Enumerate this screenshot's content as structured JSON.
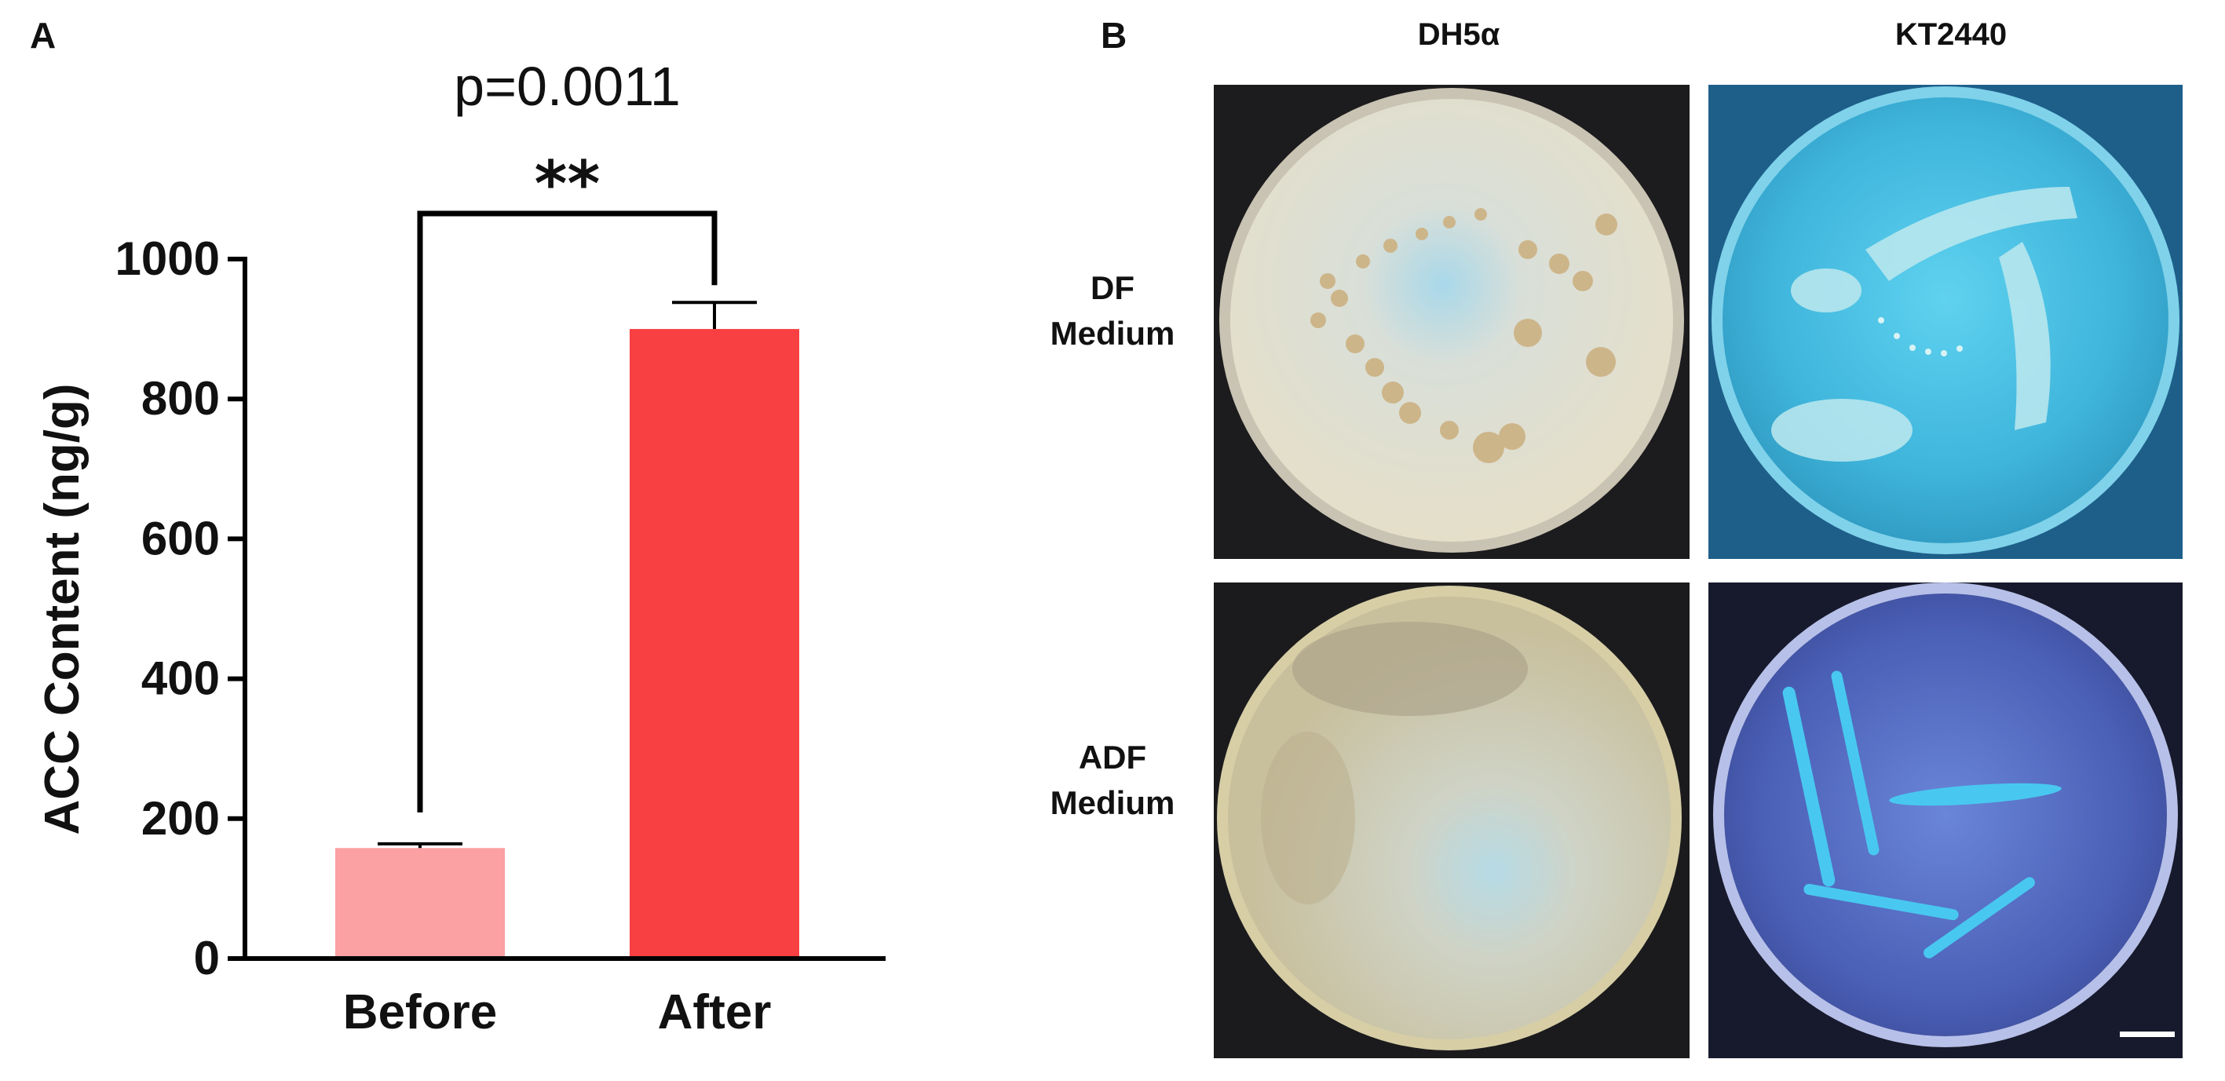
{
  "panels": {
    "a_label": "A",
    "b_label": "B"
  },
  "chart_data": {
    "type": "bar",
    "categories": [
      "Before",
      "After"
    ],
    "values": [
      158,
      900
    ],
    "errors": [
      6,
      38
    ],
    "colors": [
      "#fba0a3",
      "#f83f42"
    ],
    "ylabel": "ACC Content (ng/g)",
    "ylim": [
      0,
      1000
    ],
    "yticks": [
      0,
      200,
      400,
      600,
      800,
      1000
    ],
    "significance": {
      "p_value": "p=0.0011",
      "stars": "**"
    },
    "grid": false
  },
  "panel_b": {
    "columns": [
      "DH5α",
      "KT2440"
    ],
    "rows": [
      {
        "line1": "DF",
        "line2": "Medium"
      },
      {
        "line1": "ADF",
        "line2": "Medium"
      }
    ]
  }
}
